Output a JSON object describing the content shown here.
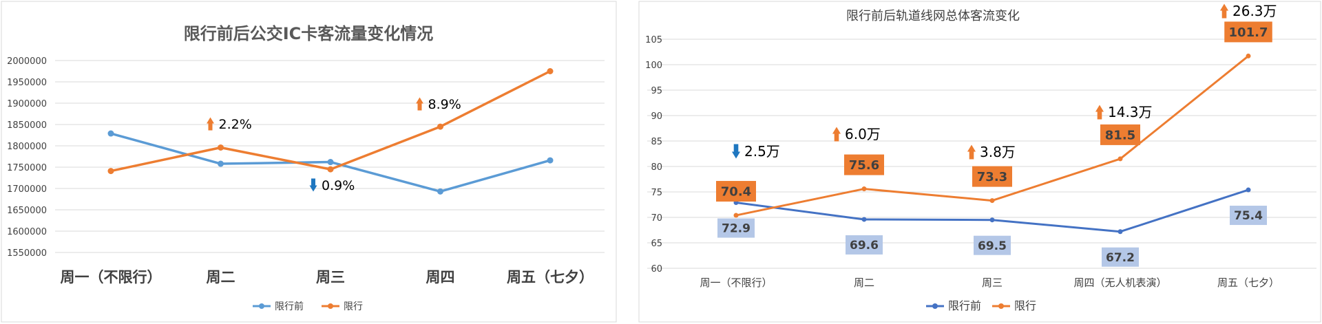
{
  "colors": {
    "before_left": "#5b9bd5",
    "after": "#ed7d31",
    "before_right": "#4472c4",
    "label_after_bg": "#ed7d31",
    "label_before_bg": "#b4c7e7",
    "up_arrow": "#ed7d31",
    "down_arrow": "#1f77c0"
  },
  "chart_data": [
    {
      "type": "line",
      "title": "限行前后公交IC卡客流量变化情况",
      "categories": [
        "周一（不限行）",
        "周二",
        "周三",
        "周四",
        "周五（七夕）"
      ],
      "yticks": [
        "1550000",
        "1600000",
        "1650000",
        "1700000",
        "1750000",
        "1800000",
        "1850000",
        "1900000",
        "1950000",
        "2000000"
      ],
      "ylim": [
        1550000,
        2000000
      ],
      "series": [
        {
          "name": "限行前",
          "values": [
            1829000,
            1758000,
            1762000,
            1693000,
            1766000
          ]
        },
        {
          "name": "限行",
          "values": [
            1741000,
            1796000,
            1745000,
            1845000,
            1975000
          ]
        }
      ],
      "legend_position": "bottom",
      "annotations": [
        {
          "category": "周二",
          "direction": "up",
          "text": "2.2%"
        },
        {
          "category": "周三",
          "direction": "down",
          "text": "0.9%"
        },
        {
          "category": "周四",
          "direction": "up",
          "text": "8.9%"
        }
      ]
    },
    {
      "type": "line",
      "title": "限行前后轨道线网总体客流变化",
      "categories": [
        "周一（不限行）",
        "周二",
        "周三",
        "周四（无人机表演）",
        "周五（七夕）"
      ],
      "yticks": [
        "60",
        "65",
        "70",
        "75",
        "80",
        "85",
        "90",
        "95",
        "100",
        "105"
      ],
      "ylim": [
        60,
        105
      ],
      "series": [
        {
          "name": "限行前",
          "values": [
            72.9,
            69.6,
            69.5,
            67.2,
            75.4
          ],
          "labels": [
            "72.9",
            "69.6",
            "69.5",
            "67.2",
            "75.4"
          ]
        },
        {
          "name": "限行",
          "values": [
            70.4,
            75.6,
            73.3,
            81.5,
            101.7
          ],
          "labels": [
            "70.4",
            "75.6",
            "73.3",
            "81.5",
            "101.7"
          ]
        }
      ],
      "legend_position": "bottom",
      "annotations": [
        {
          "category": "周一（不限行）",
          "direction": "down",
          "text": "2.5万"
        },
        {
          "category": "周二",
          "direction": "up",
          "text": "6.0万"
        },
        {
          "category": "周三",
          "direction": "up",
          "text": "3.8万"
        },
        {
          "category": "周四（无人机表演）",
          "direction": "up",
          "text": "14.3万"
        },
        {
          "category": "周五（七夕）",
          "direction": "up",
          "text": "26.3万"
        }
      ]
    }
  ]
}
